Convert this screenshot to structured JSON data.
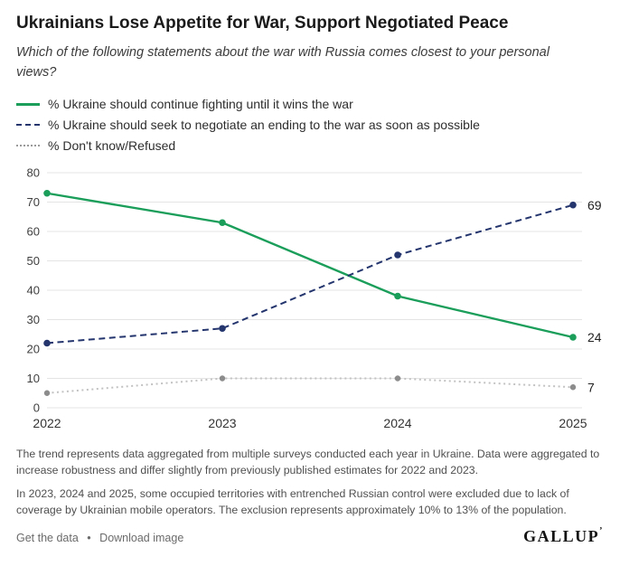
{
  "header": {
    "title": "Ukrainians Lose Appetite for War, Support Negotiated Peace",
    "subtitle": "Which of the following statements about the war with Russia comes closest to your personal views?"
  },
  "chart_data": {
    "type": "line",
    "title": "Ukrainians Lose Appetite for War, Support Negotiated Peace",
    "x": [
      2022,
      2023,
      2024,
      2025
    ],
    "series": [
      {
        "name": "% Ukraine should continue fighting until it wins the war",
        "values": [
          73,
          63,
          38,
          24
        ],
        "color": "#1a9e5a",
        "dash": "solid",
        "end_label": "24"
      },
      {
        "name": "% Ukraine should seek to negotiate an ending to the war as soon as possible",
        "values": [
          22,
          27,
          52,
          69
        ],
        "color": "#24356e",
        "dash": "dashed",
        "end_label": "69"
      },
      {
        "name": "% Don't know/Refused",
        "values": [
          5,
          10,
          10,
          7
        ],
        "color": "#c2c2c2",
        "marker_color": "#8c8c8c",
        "dash": "dotted",
        "end_label": "7"
      }
    ],
    "xlabel": "",
    "ylabel": "",
    "ylim": [
      0,
      80
    ],
    "yticks": [
      0,
      10,
      20,
      30,
      40,
      50,
      60,
      70,
      80
    ],
    "grid": true,
    "legend_position": "top-left",
    "grid_color": "#e4e4e4"
  },
  "footnotes": [
    "The trend represents data aggregated from multiple surveys conducted each year in Ukraine. Data were aggregated to increase robustness and differ slightly from previously published estimates for 2022 and 2023.",
    "In 2023, 2024 and 2025, some occupied territories with entrenched Russian control were excluded due to lack of coverage by Ukrainian mobile operators. The exclusion represents approximately 10% to 13% of the population."
  ],
  "footer": {
    "links": [
      "Get the data",
      "Download image"
    ],
    "separator": "•",
    "logo": "GALLUP",
    "logo_mark": "’"
  }
}
